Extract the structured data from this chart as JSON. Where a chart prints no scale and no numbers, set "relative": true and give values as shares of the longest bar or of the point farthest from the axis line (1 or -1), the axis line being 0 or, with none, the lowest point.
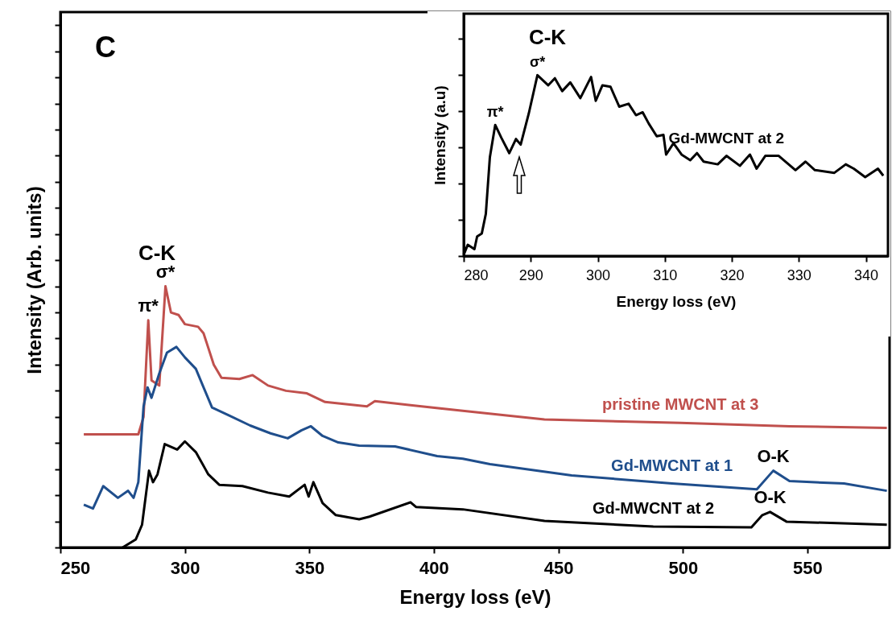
{
  "chart_data": [
    {
      "type": "line",
      "xlabel": "Energy loss (eV)",
      "ylabel": "Intensity (Arb. units)",
      "relative": true,
      "xlim": [
        250,
        583
      ],
      "xticks": [
        250,
        300,
        350,
        400,
        450,
        500,
        550
      ],
      "grid": false,
      "annotations": [
        "C",
        "C-K",
        {
          "text": "π*",
          "x": 285.3,
          "y": 0.87
        },
        {
          "text": "σ*",
          "x": 292.2,
          "y": 1.0
        },
        {
          "text": "O-K",
          "x": 536.3,
          "y": 0.294
        },
        {
          "text": "O-K",
          "x": 535,
          "y": 0.136
        }
      ],
      "series": [
        {
          "name": "pristine MWCNT at 3",
          "color": "#c0504d",
          "x": [
            259.4,
            281.3,
            283.4,
            285.3,
            286.6,
            289.7,
            292.2,
            294.4,
            297.5,
            300,
            305.3,
            307.5,
            311.6,
            314.7,
            321.9,
            327.2,
            333.4,
            340.6,
            349,
            356.3,
            373.1,
            376.3,
            390.6,
            411.6,
            444.4,
            499,
            542.8,
            581.9
          ],
          "values": [
            0.433,
            0.433,
            0.5,
            0.87,
            0.64,
            0.62,
            1.0,
            0.9,
            0.89,
            0.855,
            0.845,
            0.82,
            0.7,
            0.65,
            0.645,
            0.66,
            0.62,
            0.6,
            0.59,
            0.557,
            0.54,
            0.56,
            0.545,
            0.523,
            0.49,
            0.477,
            0.464,
            0.458
          ]
        },
        {
          "name": "Gd-MWCNT at 1",
          "color": "#1f4e8c",
          "x": [
            259.4,
            263.1,
            267.2,
            273.1,
            277.2,
            279.4,
            281.3,
            283.4,
            285,
            286.6,
            289.7,
            292.8,
            296.6,
            300,
            304.4,
            307.5,
            310.9,
            317.8,
            326.2,
            334.4,
            341.3,
            346.9,
            350.6,
            355.3,
            361.6,
            370,
            384.4,
            401.3,
            411.6,
            422.5,
            455.3,
            495.6,
            529.7,
            536.3,
            542.8,
            564.7,
            581.9
          ],
          "values": [
            0.164,
            0.149,
            0.235,
            0.19,
            0.217,
            0.19,
            0.25,
            0.54,
            0.613,
            0.573,
            0.666,
            0.746,
            0.768,
            0.728,
            0.684,
            0.613,
            0.536,
            0.505,
            0.467,
            0.437,
            0.418,
            0.449,
            0.464,
            0.427,
            0.402,
            0.39,
            0.387,
            0.35,
            0.34,
            0.319,
            0.276,
            0.245,
            0.223,
            0.294,
            0.254,
            0.245,
            0.217
          ]
        },
        {
          "name": "Gd-MWCNT at 2",
          "color": "#000000",
          "x": [
            275,
            280.3,
            282.8,
            285.6,
            287.2,
            289,
            291.9,
            296.9,
            300,
            304.4,
            309.4,
            313.8,
            323.1,
            333.4,
            341.9,
            348.1,
            349.7,
            351.6,
            355.3,
            360.6,
            370,
            374.1,
            390.6,
            392.8,
            411.6,
            444.4,
            488.1,
            527.5,
            531.9,
            535,
            541.6,
            581.9
          ],
          "values": [
            0,
            0.031,
            0.087,
            0.294,
            0.25,
            0.28,
            0.396,
            0.375,
            0.406,
            0.365,
            0.28,
            0.24,
            0.235,
            0.21,
            0.195,
            0.24,
            0.195,
            0.25,
            0.17,
            0.124,
            0.108,
            0.118,
            0.173,
            0.155,
            0.146,
            0.102,
            0.08,
            0.077,
            0.124,
            0.136,
            0.099,
            0.087
          ]
        }
      ]
    },
    {
      "type": "line",
      "xlabel": "Energy loss (eV)",
      "ylabel": "Intensity (a.u)",
      "relative": true,
      "xlim": [
        280,
        343.3
      ],
      "xticks": [
        280,
        290,
        300,
        310,
        320,
        330,
        340
      ],
      "grid": false,
      "annotations": [
        "C-K",
        {
          "text": "π*",
          "x": 284.7,
          "y": 0.725
        },
        {
          "text": "σ*",
          "x": 291,
          "y": 1.0
        }
      ],
      "series": [
        {
          "name": "Gd-MWCNT at 2",
          "color": "#000000",
          "x": [
            280,
            280.6,
            281.6,
            282,
            282.7,
            283.3,
            283.9,
            284.7,
            285.6,
            286.8,
            287.8,
            288.5,
            289.7,
            290.7,
            291,
            292.6,
            293.6,
            294.7,
            295.9,
            297.4,
            299,
            299.7,
            300.7,
            301.9,
            303.2,
            304.6,
            305.7,
            306.7,
            307.6,
            308.8,
            309.8,
            310.2,
            311.3,
            312.5,
            313.8,
            314.8,
            315.8,
            317.9,
            319.2,
            321.2,
            322.7,
            323.7,
            325,
            327,
            329.5,
            331,
            332.4,
            335.3,
            337,
            338.2,
            339.9,
            341.8,
            342.6
          ],
          "values": [
            0.007,
            0.062,
            0.038,
            0.108,
            0.125,
            0.233,
            0.545,
            0.725,
            0.655,
            0.569,
            0.647,
            0.616,
            0.787,
            0.951,
            1.0,
            0.944,
            0.983,
            0.912,
            0.96,
            0.873,
            0.99,
            0.858,
            0.944,
            0.936,
            0.826,
            0.842,
            0.779,
            0.795,
            0.733,
            0.662,
            0.67,
            0.561,
            0.624,
            0.561,
            0.53,
            0.569,
            0.522,
            0.507,
            0.554,
            0.499,
            0.561,
            0.483,
            0.554,
            0.554,
            0.475,
            0.522,
            0.475,
            0.46,
            0.507,
            0.483,
            0.436,
            0.483,
            0.444
          ]
        }
      ]
    }
  ]
}
